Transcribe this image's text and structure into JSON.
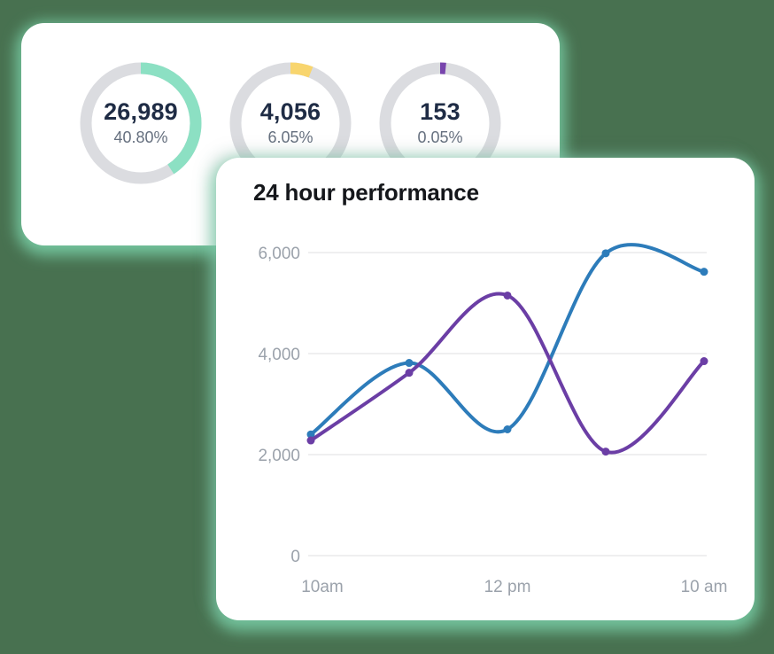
{
  "page": {
    "background_color": "#487150",
    "card_glow_color": "#7ED9B0"
  },
  "stats_card": {
    "track_color": "#DBDCE0",
    "rings": [
      {
        "value": "26,989",
        "percent_label": "40.80%",
        "percent": 40.8,
        "color": "#8CE0C3"
      },
      {
        "value": "4,056",
        "percent_label": "6.05%",
        "percent": 6.05,
        "color": "#F8D56E"
      },
      {
        "value": "153",
        "percent_label": "0.05%",
        "percent": 0.05,
        "color": "#7845AD"
      }
    ]
  },
  "performance_card": {
    "title": "24 hour performance"
  },
  "chart_data": {
    "type": "line",
    "title": "24 hour performance",
    "x_tick_labels": [
      "10am",
      "12 pm",
      "10 am"
    ],
    "x_tick_point_indices": [
      0,
      2,
      4
    ],
    "y_ticks": [
      0,
      2000,
      4000,
      6000
    ],
    "y_tick_labels": [
      "0",
      "2,000",
      "4,000",
      "6,000"
    ],
    "ylim": [
      0,
      6400
    ],
    "grid": true,
    "legend": "none",
    "gridline_color": "#EAEAEC",
    "series": [
      {
        "name": "blue-series",
        "color": "#2D7CBA",
        "values": [
          2400,
          3815,
          2500,
          5985,
          5620
        ]
      },
      {
        "name": "purple-series",
        "color": "#6B3EA5",
        "values": [
          2280,
          3620,
          5150,
          2060,
          3850
        ]
      }
    ]
  }
}
